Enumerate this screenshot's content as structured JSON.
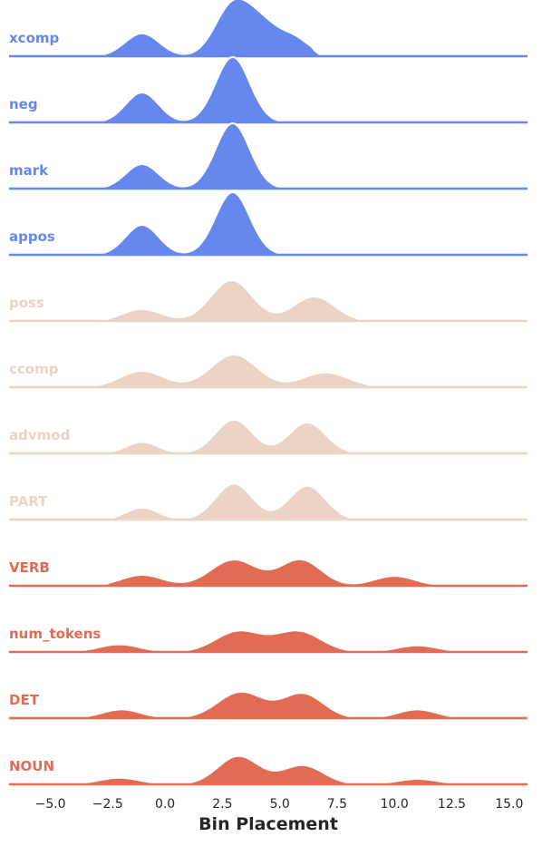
{
  "chart_data": {
    "type": "area",
    "subtype": "ridgeline-density",
    "title": "",
    "xlabel": "Bin Placement",
    "ylabel": "",
    "xlim": [
      -6.8,
      15.8
    ],
    "x_ticks": [
      -5.0,
      -2.5,
      0.0,
      2.5,
      5.0,
      7.5,
      10.0,
      12.5,
      15.0
    ],
    "x_tick_labels": [
      "−5.0",
      "−2.5",
      "0.0",
      "2.5",
      "5.0",
      "7.5",
      "10.0",
      "12.5",
      "15.0"
    ],
    "grid": false,
    "legend": "none",
    "colors": {
      "blue": "#6688ee",
      "peach": "#ebd3c6",
      "red": "#e26b53",
      "ink": "#262626"
    },
    "series": [
      {
        "name": "xcomp",
        "color": "#6688ee",
        "support": [
          -3.5,
          7.0
        ],
        "peaks": [
          {
            "mu": -1.0,
            "sigma": 0.75,
            "h": 0.42
          },
          {
            "mu": 2.9,
            "sigma": 0.75,
            "h": 0.86
          },
          {
            "mu": 4.2,
            "sigma": 0.8,
            "h": 0.58
          },
          {
            "mu": 5.7,
            "sigma": 0.65,
            "h": 0.28
          }
        ]
      },
      {
        "name": "neg",
        "color": "#6688ee",
        "support": [
          -3.3,
          5.6
        ],
        "peaks": [
          {
            "mu": -1.0,
            "sigma": 0.72,
            "h": 0.55
          },
          {
            "mu": 2.95,
            "sigma": 0.75,
            "h": 1.2
          }
        ]
      },
      {
        "name": "mark",
        "color": "#6688ee",
        "support": [
          -3.3,
          5.6
        ],
        "peaks": [
          {
            "mu": -1.0,
            "sigma": 0.72,
            "h": 0.45
          },
          {
            "mu": 2.95,
            "sigma": 0.75,
            "h": 1.2
          }
        ]
      },
      {
        "name": "appos",
        "color": "#6688ee",
        "support": [
          -3.3,
          5.6
        ],
        "peaks": [
          {
            "mu": -1.0,
            "sigma": 0.72,
            "h": 0.55
          },
          {
            "mu": 2.95,
            "sigma": 0.75,
            "h": 1.15
          }
        ]
      },
      {
        "name": "poss",
        "color": "#ebd3c6",
        "support": [
          -3.0,
          8.9
        ],
        "peaks": [
          {
            "mu": -1.0,
            "sigma": 0.85,
            "h": 0.22
          },
          {
            "mu": 2.9,
            "sigma": 0.9,
            "h": 0.75
          },
          {
            "mu": 6.5,
            "sigma": 0.9,
            "h": 0.45
          }
        ]
      },
      {
        "name": "ccomp",
        "color": "#ebd3c6",
        "support": [
          -3.7,
          9.5
        ],
        "peaks": [
          {
            "mu": -1.0,
            "sigma": 0.95,
            "h": 0.3
          },
          {
            "mu": 3.0,
            "sigma": 1.0,
            "h": 0.6
          },
          {
            "mu": 7.0,
            "sigma": 1.0,
            "h": 0.27
          }
        ]
      },
      {
        "name": "advmod",
        "color": "#ebd3c6",
        "support": [
          -2.8,
          8.5
        ],
        "peaks": [
          {
            "mu": -1.0,
            "sigma": 0.7,
            "h": 0.21
          },
          {
            "mu": 3.0,
            "sigma": 0.8,
            "h": 0.62
          },
          {
            "mu": 6.2,
            "sigma": 0.8,
            "h": 0.57
          }
        ]
      },
      {
        "name": "PART",
        "color": "#ebd3c6",
        "support": [
          -2.8,
          8.5
        ],
        "peaks": [
          {
            "mu": -1.0,
            "sigma": 0.7,
            "h": 0.22
          },
          {
            "mu": 3.0,
            "sigma": 0.8,
            "h": 0.66
          },
          {
            "mu": 6.2,
            "sigma": 0.8,
            "h": 0.62
          }
        ]
      },
      {
        "name": "VERB",
        "color": "#e26b53",
        "support": [
          -3.0,
          12.2
        ],
        "peaks": [
          {
            "mu": -1.0,
            "sigma": 0.9,
            "h": 0.2
          },
          {
            "mu": 3.0,
            "sigma": 1.0,
            "h": 0.48
          },
          {
            "mu": 5.9,
            "sigma": 0.9,
            "h": 0.48
          },
          {
            "mu": 10.0,
            "sigma": 0.9,
            "h": 0.18
          }
        ]
      },
      {
        "name": "num_tokens",
        "color": "#e26b53",
        "support": [
          -4.5,
          13.2
        ],
        "peaks": [
          {
            "mu": -2.0,
            "sigma": 0.9,
            "h": 0.14
          },
          {
            "mu": 3.2,
            "sigma": 1.0,
            "h": 0.38
          },
          {
            "mu": 5.8,
            "sigma": 1.0,
            "h": 0.38
          },
          {
            "mu": 11.0,
            "sigma": 0.9,
            "h": 0.12
          }
        ]
      },
      {
        "name": "DET",
        "color": "#e26b53",
        "support": [
          -4.2,
          13.2
        ],
        "peaks": [
          {
            "mu": -1.9,
            "sigma": 0.85,
            "h": 0.16
          },
          {
            "mu": 3.3,
            "sigma": 1.0,
            "h": 0.48
          },
          {
            "mu": 6.0,
            "sigma": 0.9,
            "h": 0.45
          },
          {
            "mu": 11.0,
            "sigma": 0.85,
            "h": 0.16
          }
        ]
      },
      {
        "name": "NOUN",
        "color": "#e26b53",
        "support": [
          -4.0,
          13.2
        ],
        "peaks": [
          {
            "mu": -2.0,
            "sigma": 0.9,
            "h": 0.12
          },
          {
            "mu": 3.2,
            "sigma": 0.9,
            "h": 0.52
          },
          {
            "mu": 6.0,
            "sigma": 0.9,
            "h": 0.35
          },
          {
            "mu": 11.0,
            "sigma": 0.9,
            "h": 0.1
          }
        ]
      }
    ]
  }
}
